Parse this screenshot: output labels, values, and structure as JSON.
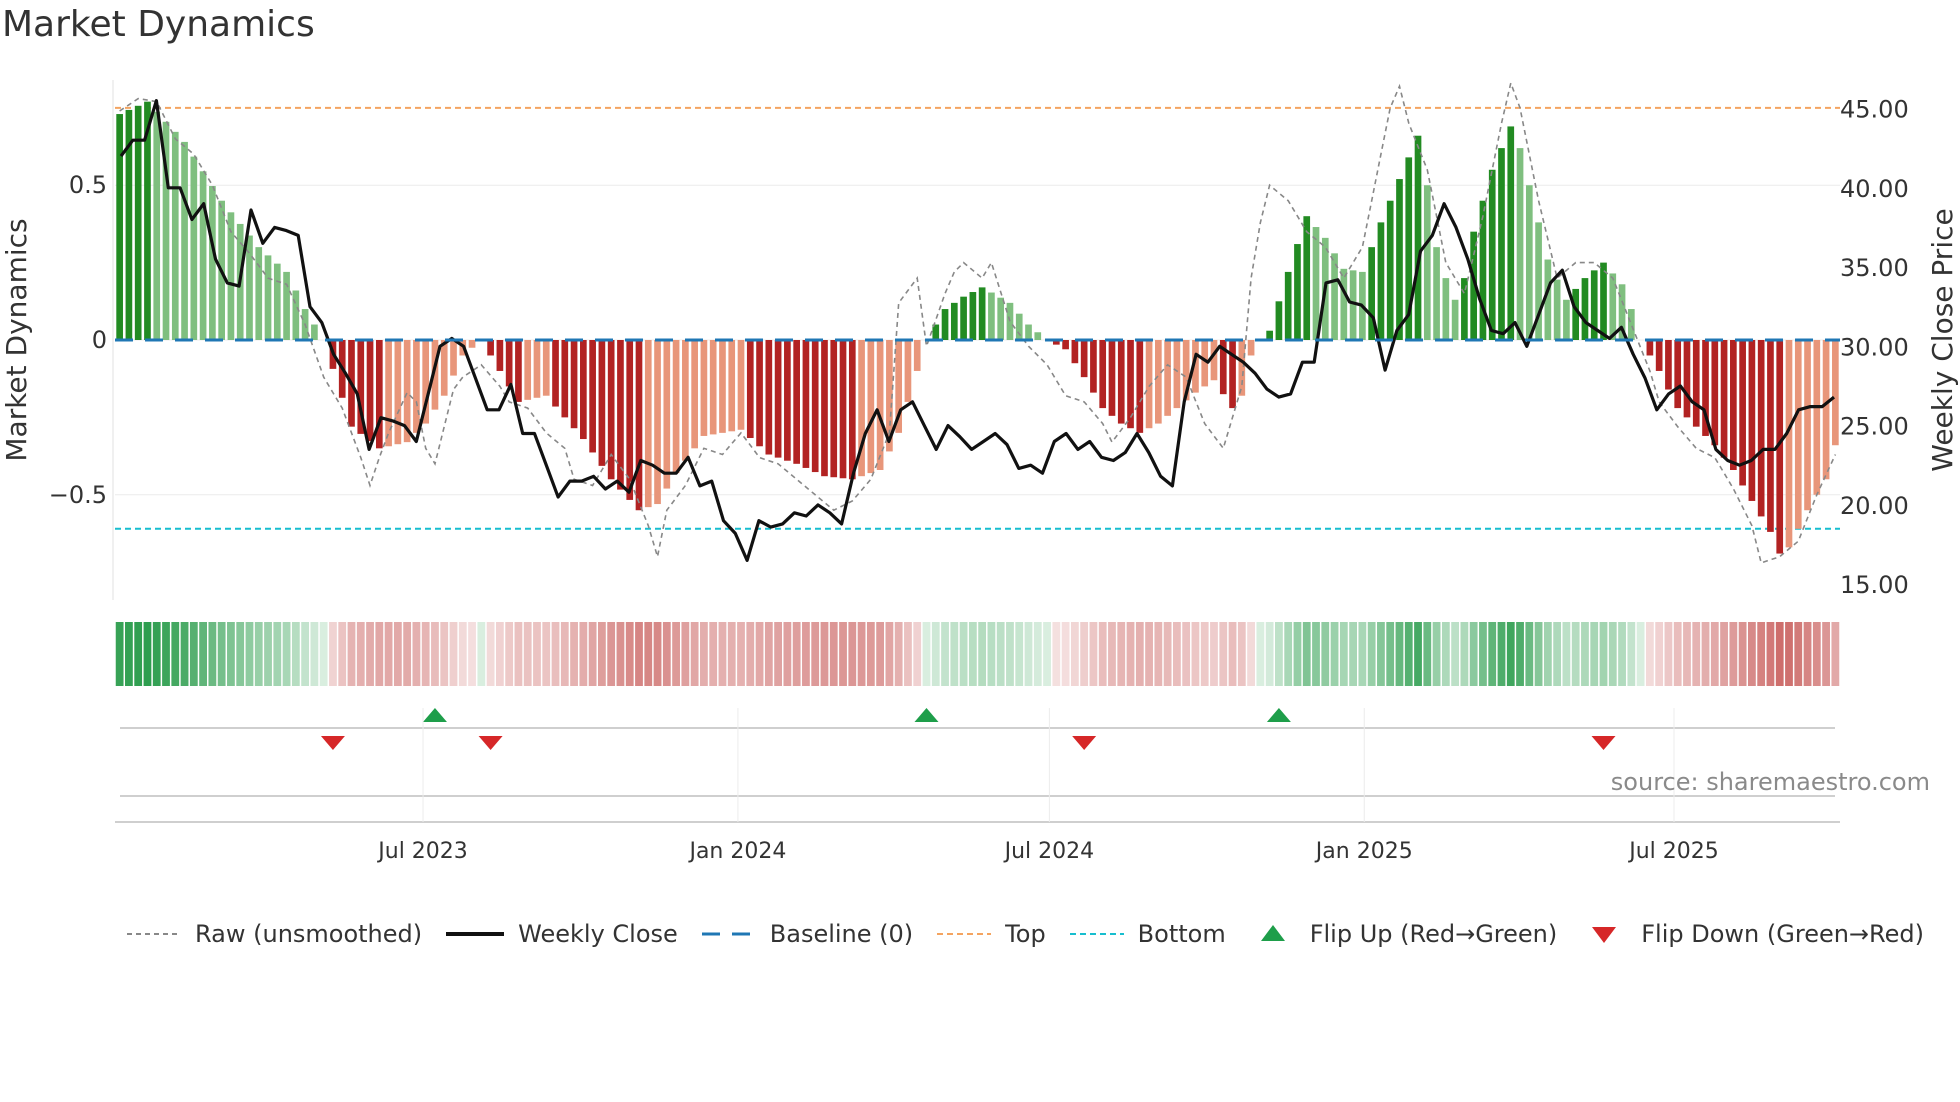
{
  "title": "Market Dynamics",
  "source": "source: sharemaestro.com",
  "colors": {
    "strong_green": "#228b22",
    "light_green": "#7fbf7f",
    "strong_red": "#b22222",
    "light_red": "#e8967a",
    "baseline": "#1f77b4",
    "top": "#f4a460",
    "bottom": "#17becf",
    "flip_up": "#1e9e4a",
    "flip_down": "#d62728",
    "close": "#111111",
    "raw": "#888888"
  },
  "legend": {
    "raw": "Raw (unsmoothed)",
    "close": "Weekly Close",
    "baseline": "Baseline (0)",
    "top": "Top",
    "bottom": "Bottom",
    "flip_up": "Flip Up (Red→Green)",
    "flip_down": "Flip Down (Green→Red)"
  },
  "chart_data": {
    "type": "bar",
    "title": "Market Dynamics",
    "ylabel_left": "Market Dynamics",
    "ylabel_right": "Weekly Close Price",
    "ylim_left": [
      -0.84,
      0.84
    ],
    "yticks_left": [
      0.5,
      0,
      -0.5
    ],
    "ytick_labels_left": [
      "0.5",
      "0",
      "−0.5"
    ],
    "ylim_right": [
      14,
      46.8
    ],
    "yticks_right": [
      15,
      20,
      25,
      30,
      35,
      40,
      45
    ],
    "ytick_labels_right": [
      "15.00",
      "20.00",
      "25.00",
      "30.00",
      "35.00",
      "40.00",
      "45.00"
    ],
    "x_start": "2023-01-02",
    "x_end": "2025-10-06",
    "xticks": [
      "2023-07-01",
      "2024-01-01",
      "2024-07-01",
      "2025-01-01",
      "2025-07-01"
    ],
    "xtick_labels": [
      "Jul 2023",
      "Jan 2024",
      "Jul 2024",
      "Jan 2025",
      "Jul 2025"
    ],
    "top_level": 0.75,
    "bottom_level": -0.61,
    "baseline": 0,
    "dynamics_knots": [
      [
        0,
        0.73
      ],
      [
        3,
        0.77
      ],
      [
        7,
        0.64
      ],
      [
        11,
        0.45
      ],
      [
        15,
        0.3
      ],
      [
        18,
        0.22
      ],
      [
        20,
        0.1
      ],
      [
        22,
        0
      ],
      [
        25,
        -0.28
      ],
      [
        28,
        -0.35
      ],
      [
        31,
        -0.33
      ],
      [
        33,
        -0.27
      ],
      [
        35,
        -0.18
      ],
      [
        37,
        -0.05
      ],
      [
        39,
        0
      ],
      [
        41,
        -0.1
      ],
      [
        43,
        -0.2
      ],
      [
        46,
        -0.18
      ],
      [
        50,
        -0.32
      ],
      [
        53,
        -0.45
      ],
      [
        56,
        -0.55
      ],
      [
        58,
        -0.53
      ],
      [
        60,
        -0.43
      ],
      [
        63,
        -0.31
      ],
      [
        67,
        -0.29
      ],
      [
        70,
        -0.37
      ],
      [
        73,
        -0.4
      ],
      [
        76,
        -0.44
      ],
      [
        79,
        -0.45
      ],
      [
        82,
        -0.42
      ],
      [
        84,
        -0.3
      ],
      [
        86,
        -0.1
      ],
      [
        87,
        0
      ],
      [
        89,
        0.1
      ],
      [
        91,
        0.14
      ],
      [
        93,
        0.17
      ],
      [
        96,
        0.12
      ],
      [
        98,
        0.05
      ],
      [
        100,
        0
      ],
      [
        102,
        -0.03
      ],
      [
        104,
        -0.12
      ],
      [
        106,
        -0.22
      ],
      [
        108,
        -0.27
      ],
      [
        110,
        -0.3
      ],
      [
        112,
        -0.27
      ],
      [
        114,
        -0.22
      ],
      [
        116,
        -0.17
      ],
      [
        118,
        -0.13
      ],
      [
        120,
        -0.22
      ],
      [
        121,
        -0.18
      ],
      [
        122,
        -0.05
      ],
      [
        123,
        0
      ],
      [
        124,
        0.03
      ],
      [
        126,
        0.22
      ],
      [
        128,
        0.4
      ],
      [
        130,
        0.33
      ],
      [
        132,
        0.23
      ],
      [
        134,
        0.22
      ],
      [
        136,
        0.38
      ],
      [
        138,
        0.52
      ],
      [
        140,
        0.66
      ],
      [
        141,
        0.5
      ],
      [
        142,
        0.3
      ],
      [
        143,
        0.2
      ],
      [
        144,
        0.13
      ],
      [
        145,
        0.2
      ],
      [
        146,
        0.35
      ],
      [
        148,
        0.55
      ],
      [
        150,
        0.69
      ],
      [
        151,
        0.62
      ],
      [
        152,
        0.5
      ],
      [
        154,
        0.26
      ],
      [
        156,
        0.13
      ],
      [
        158,
        0.2
      ],
      [
        160,
        0.25
      ],
      [
        162,
        0.18
      ],
      [
        163,
        0.1
      ],
      [
        164,
        0
      ],
      [
        166,
        -0.1
      ],
      [
        168,
        -0.22
      ],
      [
        170,
        -0.28
      ],
      [
        172,
        -0.34
      ],
      [
        174,
        -0.42
      ],
      [
        176,
        -0.52
      ],
      [
        178,
        -0.62
      ],
      [
        179,
        -0.69
      ],
      [
        180,
        -0.67
      ],
      [
        182,
        -0.55
      ],
      [
        184,
        -0.45
      ],
      [
        185,
        -0.34
      ],
      [
        186,
        -0.24
      ]
    ],
    "dynamics_values_note": "186 weekly bars, piecewise linear between knots [week_index, value]",
    "close_knots": [
      [
        0,
        42
      ],
      [
        1,
        43
      ],
      [
        2,
        43
      ],
      [
        3,
        45.5
      ],
      [
        4,
        40
      ],
      [
        5,
        40
      ],
      [
        6,
        38
      ],
      [
        7,
        39
      ],
      [
        8,
        35.5
      ],
      [
        9,
        34
      ],
      [
        10,
        33.8
      ],
      [
        11,
        38.6
      ],
      [
        12,
        36.5
      ],
      [
        13,
        37.5
      ],
      [
        14,
        37.3
      ],
      [
        15,
        37
      ],
      [
        16,
        32.5
      ],
      [
        17,
        31.5
      ],
      [
        18,
        29.5
      ],
      [
        19,
        28.3
      ],
      [
        20,
        27
      ],
      [
        21,
        23.5
      ],
      [
        22,
        25.5
      ],
      [
        23,
        25.3
      ],
      [
        24,
        25
      ],
      [
        25,
        24
      ],
      [
        26,
        27
      ],
      [
        27,
        30
      ],
      [
        28,
        30.5
      ],
      [
        29,
        30
      ],
      [
        30,
        28
      ],
      [
        31,
        26
      ],
      [
        32,
        26
      ],
      [
        33,
        27.6
      ],
      [
        34,
        24.5
      ],
      [
        35,
        24.5
      ],
      [
        36,
        22.5
      ],
      [
        37,
        20.5
      ],
      [
        38,
        21.5
      ],
      [
        39,
        21.5
      ],
      [
        40,
        21.8
      ],
      [
        41,
        21
      ],
      [
        42,
        21.5
      ],
      [
        43,
        20.8
      ],
      [
        44,
        22.8
      ],
      [
        45,
        22.5
      ],
      [
        46,
        22
      ],
      [
        47,
        22
      ],
      [
        48,
        23
      ],
      [
        49,
        21.2
      ],
      [
        50,
        21.5
      ],
      [
        51,
        19
      ],
      [
        52,
        18.2
      ],
      [
        53,
        16.5
      ],
      [
        54,
        19
      ],
      [
        55,
        18.6
      ],
      [
        56,
        18.8
      ],
      [
        57,
        19.5
      ],
      [
        58,
        19.3
      ],
      [
        59,
        20
      ],
      [
        60,
        19.5
      ],
      [
        61,
        18.8
      ],
      [
        62,
        22
      ],
      [
        63,
        24.5
      ],
      [
        64,
        26
      ],
      [
        65,
        24
      ],
      [
        66,
        26
      ],
      [
        67,
        26.5
      ],
      [
        68,
        25
      ],
      [
        69,
        23.5
      ],
      [
        70,
        25
      ],
      [
        71,
        24.3
      ],
      [
        72,
        23.5
      ],
      [
        73,
        24
      ],
      [
        74,
        24.5
      ],
      [
        75,
        23.8
      ],
      [
        76,
        22.3
      ],
      [
        77,
        22.5
      ],
      [
        78,
        22
      ],
      [
        79,
        24
      ],
      [
        80,
        24.5
      ],
      [
        81,
        23.5
      ],
      [
        82,
        24
      ],
      [
        83,
        23
      ],
      [
        84,
        22.8
      ],
      [
        85,
        23.3
      ],
      [
        86,
        24.5
      ],
      [
        87,
        23.3
      ],
      [
        88,
        21.8
      ],
      [
        89,
        21.2
      ],
      [
        90,
        26.5
      ],
      [
        91,
        29.5
      ],
      [
        92,
        29
      ],
      [
        93,
        30
      ],
      [
        94,
        29.5
      ],
      [
        95,
        29
      ],
      [
        96,
        28.3
      ],
      [
        97,
        27.3
      ],
      [
        98,
        26.8
      ],
      [
        99,
        27
      ],
      [
        100,
        29
      ],
      [
        101,
        29
      ],
      [
        102,
        34
      ],
      [
        103,
        34.2
      ],
      [
        104,
        32.8
      ],
      [
        105,
        32.6
      ],
      [
        106,
        31.8
      ],
      [
        107,
        28.5
      ],
      [
        108,
        31
      ],
      [
        109,
        32
      ],
      [
        110,
        36
      ],
      [
        111,
        37
      ],
      [
        112,
        39
      ],
      [
        113,
        37.5
      ],
      [
        114,
        35.5
      ],
      [
        115,
        33
      ],
      [
        116,
        31
      ],
      [
        117,
        30.8
      ],
      [
        118,
        31.5
      ],
      [
        119,
        30
      ],
      [
        120,
        32
      ],
      [
        121,
        34
      ],
      [
        122,
        34.8
      ],
      [
        123,
        32.5
      ],
      [
        124,
        31.5
      ],
      [
        125,
        31
      ],
      [
        126,
        30.5
      ],
      [
        127,
        31.2
      ],
      [
        128,
        29.5
      ],
      [
        129,
        28
      ],
      [
        130,
        26
      ],
      [
        131,
        27
      ],
      [
        132,
        27.5
      ],
      [
        133,
        26.5
      ],
      [
        134,
        26
      ],
      [
        135,
        23.5
      ],
      [
        136,
        22.8
      ],
      [
        137,
        22.5
      ],
      [
        138,
        22.8
      ],
      [
        139,
        23.5
      ],
      [
        140,
        23.5
      ],
      [
        141,
        24.5
      ],
      [
        142,
        26
      ],
      [
        143,
        26.2
      ],
      [
        144,
        26.2
      ],
      [
        145,
        26.8
      ]
    ],
    "raw_knots": [
      [
        0,
        0.74
      ],
      [
        2,
        0.78
      ],
      [
        4,
        0.77
      ],
      [
        6,
        0.65
      ],
      [
        8,
        0.6
      ],
      [
        10,
        0.5
      ],
      [
        12,
        0.35
      ],
      [
        14,
        0.28
      ],
      [
        16,
        0.2
      ],
      [
        18,
        0.18
      ],
      [
        20,
        0.05
      ],
      [
        22,
        -0.12
      ],
      [
        24,
        -0.22
      ],
      [
        26,
        -0.38
      ],
      [
        27,
        -0.47
      ],
      [
        28,
        -0.38
      ],
      [
        29,
        -0.3
      ],
      [
        31,
        -0.17
      ],
      [
        32,
        -0.2
      ],
      [
        33,
        -0.35
      ],
      [
        34,
        -0.4
      ],
      [
        35,
        -0.28
      ],
      [
        36,
        -0.16
      ],
      [
        37,
        -0.12
      ],
      [
        39,
        -0.08
      ],
      [
        41,
        -0.15
      ],
      [
        42,
        -0.2
      ],
      [
        44,
        -0.22
      ],
      [
        46,
        -0.3
      ],
      [
        48,
        -0.35
      ],
      [
        49,
        -0.45
      ],
      [
        51,
        -0.47
      ],
      [
        53,
        -0.37
      ],
      [
        55,
        -0.45
      ],
      [
        57,
        -0.6
      ],
      [
        58,
        -0.7
      ],
      [
        59,
        -0.55
      ],
      [
        61,
        -0.47
      ],
      [
        63,
        -0.35
      ],
      [
        65,
        -0.37
      ],
      [
        67,
        -0.3
      ],
      [
        69,
        -0.38
      ],
      [
        71,
        -0.4
      ],
      [
        73,
        -0.45
      ],
      [
        75,
        -0.5
      ],
      [
        77,
        -0.55
      ],
      [
        79,
        -0.52
      ],
      [
        81,
        -0.45
      ],
      [
        83,
        -0.3
      ],
      [
        84,
        0.12
      ],
      [
        86,
        0.2
      ],
      [
        87,
        -0.02
      ],
      [
        89,
        0.15
      ],
      [
        90,
        0.22
      ],
      [
        91,
        0.25
      ],
      [
        93,
        0.2
      ],
      [
        94,
        0.25
      ],
      [
        96,
        0.06
      ],
      [
        98,
        -0.02
      ],
      [
        100,
        -0.08
      ],
      [
        102,
        -0.18
      ],
      [
        104,
        -0.2
      ],
      [
        106,
        -0.27
      ],
      [
        107,
        -0.33
      ],
      [
        109,
        -0.25
      ],
      [
        111,
        -0.15
      ],
      [
        113,
        -0.08
      ],
      [
        115,
        -0.12
      ],
      [
        117,
        -0.27
      ],
      [
        119,
        -0.35
      ],
      [
        121,
        -0.15
      ],
      [
        122,
        0.2
      ],
      [
        123,
        0.38
      ],
      [
        124,
        0.5
      ],
      [
        126,
        0.45
      ],
      [
        128,
        0.35
      ],
      [
        130,
        0.3
      ],
      [
        132,
        0.2
      ],
      [
        134,
        0.3
      ],
      [
        136,
        0.6
      ],
      [
        137,
        0.75
      ],
      [
        138,
        0.82
      ],
      [
        139,
        0.7
      ],
      [
        141,
        0.55
      ],
      [
        143,
        0.25
      ],
      [
        145,
        0.15
      ],
      [
        147,
        0.4
      ],
      [
        149,
        0.7
      ],
      [
        150,
        0.83
      ],
      [
        151,
        0.75
      ],
      [
        153,
        0.45
      ],
      [
        155,
        0.2
      ],
      [
        157,
        0.25
      ],
      [
        159,
        0.25
      ],
      [
        161,
        0.2
      ],
      [
        163,
        0.05
      ],
      [
        165,
        -0.1
      ],
      [
        166,
        -0.2
      ],
      [
        168,
        -0.28
      ],
      [
        170,
        -0.35
      ],
      [
        172,
        -0.38
      ],
      [
        174,
        -0.48
      ],
      [
        176,
        -0.6
      ],
      [
        177,
        -0.72
      ],
      [
        179,
        -0.7
      ],
      [
        181,
        -0.65
      ],
      [
        183,
        -0.5
      ],
      [
        185,
        -0.37
      ]
    ],
    "flip_up_weeks": [
      34,
      87,
      125
    ],
    "flip_down_weeks": [
      23,
      40,
      104,
      160
    ],
    "n_bars": 186
  }
}
